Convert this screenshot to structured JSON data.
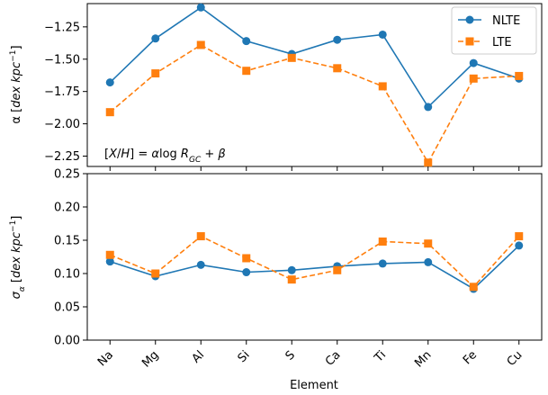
{
  "chart_data": [
    {
      "type": "line",
      "ylabel": "α [dex kpc⁻¹]",
      "ylim": [
        -2.33,
        -1.07
      ],
      "yticks": [
        -1.25,
        -1.5,
        -1.75,
        -2.0,
        -2.25
      ],
      "ytick_labels": [
        "−1.25",
        "−1.50",
        "−1.75",
        "−2.00",
        "−2.25"
      ],
      "categories": [
        "Na",
        "Mg",
        "Al",
        "Si",
        "S",
        "Ca",
        "Ti",
        "Mn",
        "Fe",
        "Cu"
      ],
      "legend_position": "top-right",
      "annotation": "[X/H] = αlog R_GC + β",
      "series": [
        {
          "name": "NLTE",
          "color": "#1f77b4",
          "linestyle": "solid",
          "marker": "circle",
          "values": [
            -1.68,
            -1.34,
            -1.1,
            -1.36,
            -1.46,
            -1.35,
            -1.31,
            -1.87,
            -1.53,
            -1.65
          ]
        },
        {
          "name": "LTE",
          "color": "#ff7f0e",
          "linestyle": "dashed",
          "marker": "square",
          "values": [
            -1.91,
            -1.61,
            -1.39,
            -1.59,
            -1.49,
            -1.57,
            -1.71,
            -2.3,
            -1.65,
            -1.63
          ]
        }
      ]
    },
    {
      "type": "line",
      "ylabel": "σα [dex kpc⁻¹]",
      "xlabel": "Element",
      "ylim": [
        0.0,
        0.25
      ],
      "yticks": [
        0.0,
        0.05,
        0.1,
        0.15,
        0.2,
        0.25
      ],
      "ytick_labels": [
        "0.00",
        "0.05",
        "0.10",
        "0.15",
        "0.20",
        "0.25"
      ],
      "categories": [
        "Na",
        "Mg",
        "Al",
        "Si",
        "S",
        "Ca",
        "Ti",
        "Mn",
        "Fe",
        "Cu"
      ],
      "series": [
        {
          "name": "NLTE",
          "color": "#1f77b4",
          "linestyle": "solid",
          "marker": "circle",
          "values": [
            0.118,
            0.096,
            0.113,
            0.102,
            0.105,
            0.111,
            0.115,
            0.117,
            0.077,
            0.142
          ]
        },
        {
          "name": "LTE",
          "color": "#ff7f0e",
          "linestyle": "dashed",
          "marker": "square",
          "values": [
            0.128,
            0.1,
            0.156,
            0.123,
            0.091,
            0.105,
            0.148,
            0.145,
            0.08,
            0.156
          ]
        }
      ]
    }
  ]
}
